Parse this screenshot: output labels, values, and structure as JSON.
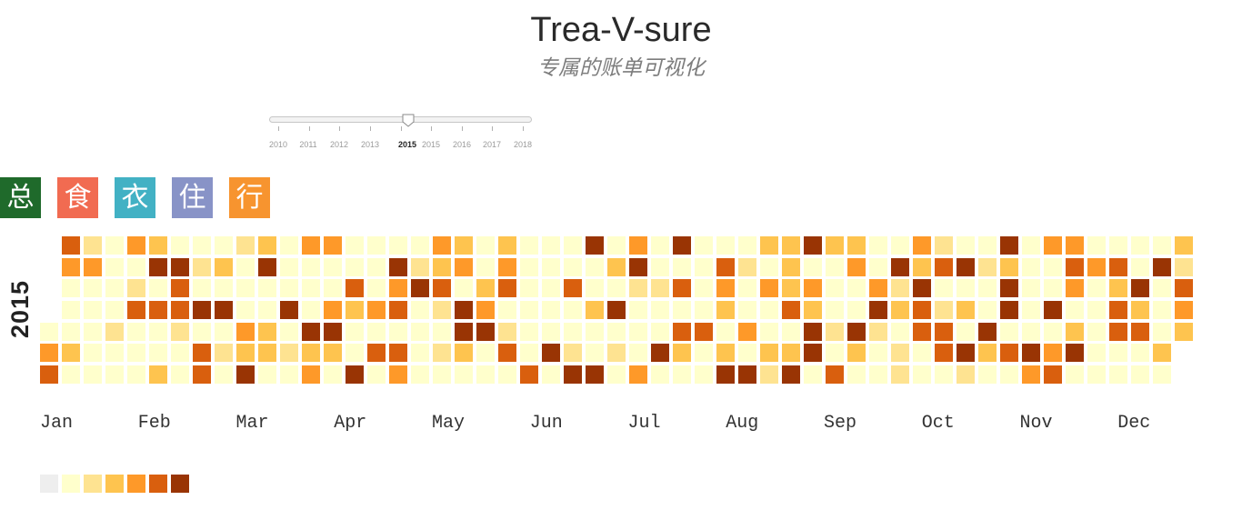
{
  "header": {
    "title": "Trea-V-sure",
    "subtitle": "专属的账单可视化"
  },
  "slider": {
    "tick_labels": [
      "2010",
      "2011",
      "2012",
      "2013",
      "2015",
      "2016",
      "2017",
      "2018"
    ],
    "value_label": "2015"
  },
  "categories": [
    {
      "label": "总",
      "color": "#1f6a2b"
    },
    {
      "label": "食",
      "color": "#f16b51"
    },
    {
      "label": "衣",
      "color": "#42b1c4"
    },
    {
      "label": "住",
      "color": "#8893c7"
    },
    {
      "label": "行",
      "color": "#f7942f"
    }
  ],
  "chart_data": {
    "type": "heatmap",
    "year": "2015",
    "months": [
      "Jan",
      "Feb",
      "Mar",
      "Apr",
      "May",
      "Jun",
      "Jul",
      "Aug",
      "Sep",
      "Oct",
      "Nov",
      "Dec"
    ],
    "levels": [
      "#eeeeee",
      "#ffffcc",
      "#fee391",
      "#fec44f",
      "#fe9929",
      "#d95f0e",
      "#993404"
    ],
    "days": [
      [
        1,
        4,
        5,
        5,
        4,
        1,
        1,
        1,
        3,
        1,
        2,
        4,
        1,
        1,
        1,
        1,
        1,
        1,
        1,
        1,
        1,
        2,
        1,
        1,
        4,
        1,
        2,
        5,
        1,
        1,
        1
      ],
      [
        3,
        6,
        1,
        5,
        1,
        1,
        3,
        1,
        6,
        5,
        5,
        2,
        1,
        1,
        1,
        2,
        1,
        6,
        1,
        5,
        5,
        1,
        3,
        1,
        6,
        1,
        2,
        1
      ],
      [
        2,
        1,
        1,
        1,
        4,
        3,
        6,
        3,
        6,
        1,
        1,
        3,
        3,
        1,
        1,
        1,
        1,
        6,
        1,
        2,
        1,
        4,
        1,
        1,
        1,
        6,
        3,
        4,
        4,
        1,
        1
      ],
      [
        4,
        6,
        3,
        1,
        1,
        1,
        5,
        3,
        1,
        1,
        6,
        1,
        1,
        1,
        4,
        1,
        5,
        1,
        1,
        6,
        4,
        5,
        1,
        5,
        4,
        1,
        2,
        6,
        1,
        1
      ],
      [
        1,
        1,
        4,
        3,
        5,
        2,
        1,
        2,
        1,
        3,
        4,
        1,
        6,
        6,
        3,
        1,
        1,
        1,
        3,
        4,
        6,
        1,
        1,
        3,
        4,
        5,
        1,
        2,
        5,
        1,
        1
      ],
      [
        1,
        1,
        1,
        1,
        1,
        5,
        1,
        1,
        1,
        1,
        1,
        6,
        1,
        1,
        1,
        5,
        1,
        1,
        2,
        6,
        6,
        1,
        1,
        3,
        1,
        1,
        6,
        1,
        3,
        1
      ],
      [
        6,
        1,
        2,
        1,
        4,
        6,
        2,
        1,
        1,
        1,
        4,
        1,
        1,
        2,
        1,
        1,
        6,
        1,
        6,
        1,
        5,
        1,
        5,
        3,
        1,
        1,
        1,
        1,
        1,
        5,
        1
      ],
      [
        1,
        1,
        5,
        4,
        3,
        1,
        3,
        6,
        1,
        2,
        1,
        1,
        4,
        1,
        6,
        3,
        1,
        4,
        1,
        1,
        3,
        2,
        3,
        3,
        3,
        5,
        1,
        3,
        6,
        6,
        1
      ],
      [
        4,
        3,
        6,
        6,
        1,
        3,
        1,
        1,
        1,
        2,
        1,
        5,
        3,
        4,
        1,
        1,
        6,
        3,
        1,
        1,
        1,
        4,
        6,
        2,
        1,
        1,
        1,
        6,
        2,
        3
      ],
      [
        1,
        2,
        2,
        4,
        3,
        6,
        5,
        5,
        1,
        1,
        2,
        5,
        1,
        2,
        5,
        5,
        1,
        1,
        6,
        1,
        3,
        1,
        6,
        2,
        1,
        2,
        1,
        1,
        6,
        3,
        1
      ],
      [
        6,
        3,
        6,
        6,
        1,
        5,
        1,
        1,
        1,
        1,
        1,
        1,
        6,
        4,
        4,
        1,
        1,
        6,
        1,
        4,
        5,
        4,
        5,
        4,
        1,
        3,
        6,
        1,
        1,
        4
      ],
      [
        1,
        1,
        1,
        1,
        1,
        1,
        5,
        3,
        5,
        5,
        1,
        1,
        1,
        1,
        6,
        3,
        5,
        1,
        1,
        1,
        6,
        1,
        1,
        1,
        3,
        1,
        3,
        2,
        5,
        4,
        3
      ]
    ]
  }
}
